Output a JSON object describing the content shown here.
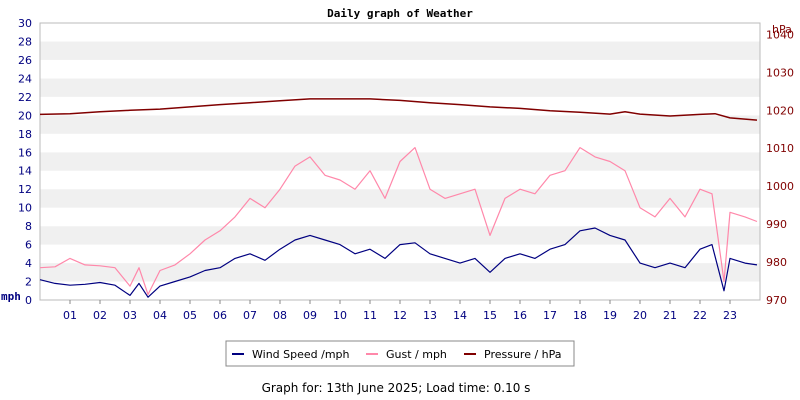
{
  "chart_data": {
    "type": "line",
    "title": "Daily graph of Weather",
    "footer": "Graph for: 13th June 2025; Load time: 0.10 s",
    "x_range": [
      0,
      24
    ],
    "x_tick_labels": [
      "01",
      "02",
      "03",
      "04",
      "05",
      "06",
      "07",
      "08",
      "09",
      "10",
      "11",
      "12",
      "13",
      "14",
      "15",
      "16",
      "17",
      "18",
      "19",
      "20",
      "21",
      "22",
      "23"
    ],
    "left_axis": {
      "unit_label": "mph",
      "range": [
        0,
        30
      ],
      "ticks": [
        0,
        2,
        4,
        6,
        8,
        10,
        12,
        14,
        16,
        18,
        20,
        22,
        24,
        26,
        28,
        30
      ],
      "tick_labels": [
        "0",
        "2",
        "4",
        "6",
        "8",
        "10",
        "12",
        "14",
        "16",
        "18",
        "20",
        "22",
        "24",
        "26",
        "28",
        "30"
      ]
    },
    "right_axis": {
      "unit_label": "hPa",
      "range": [
        970,
        1043
      ],
      "ticks": [
        970,
        980,
        990,
        1000,
        1010,
        1020,
        1030,
        1040
      ],
      "tick_labels": [
        "970",
        "980",
        "990",
        "1000",
        "1010",
        "1020",
        "1030",
        "1040"
      ]
    },
    "legend": [
      {
        "label": "Wind Speed /mph",
        "color": "#000080"
      },
      {
        "label": "Gust / mph",
        "color": "#ff88aa"
      },
      {
        "label": "Pressure / hPa",
        "color": "#800000"
      }
    ],
    "series": [
      {
        "name": "Wind Speed /mph",
        "axis": "left",
        "color": "#000080",
        "x": [
          0,
          0.5,
          1,
          1.5,
          2,
          2.5,
          3,
          3.3,
          3.6,
          4,
          4.5,
          5,
          5.5,
          6,
          6.5,
          7,
          7.5,
          8,
          8.5,
          9,
          9.5,
          10,
          10.5,
          11,
          11.5,
          12,
          12.5,
          13,
          13.5,
          14,
          14.5,
          15,
          15.5,
          16,
          16.5,
          17,
          17.5,
          18,
          18.5,
          19,
          19.5,
          20,
          20.5,
          21,
          21.5,
          22,
          22.4,
          22.8,
          23,
          23.5,
          23.9
        ],
        "values": [
          2.2,
          1.8,
          1.6,
          1.7,
          1.9,
          1.6,
          0.5,
          1.8,
          0.3,
          1.5,
          2.0,
          2.5,
          3.2,
          3.5,
          4.5,
          5.0,
          4.3,
          5.5,
          6.5,
          7.0,
          6.5,
          6.0,
          5.0,
          5.5,
          4.5,
          6.0,
          6.2,
          5.0,
          4.5,
          4.0,
          4.5,
          3.0,
          4.5,
          5.0,
          4.5,
          5.5,
          6.0,
          7.5,
          7.8,
          7.0,
          6.5,
          4.0,
          3.5,
          4.0,
          3.5,
          5.5,
          6.0,
          1.0,
          4.5,
          4.0,
          3.8
        ]
      },
      {
        "name": "Gust / mph",
        "axis": "left",
        "color": "#ff88aa",
        "x": [
          0,
          0.5,
          1,
          1.5,
          2,
          2.5,
          3,
          3.3,
          3.6,
          4,
          4.5,
          5,
          5.5,
          6,
          6.5,
          7,
          7.5,
          8,
          8.5,
          9,
          9.5,
          10,
          10.5,
          11,
          11.5,
          12,
          12.5,
          13,
          13.5,
          14,
          14.5,
          15,
          15.5,
          16,
          16.5,
          17,
          17.5,
          18,
          18.5,
          19,
          19.5,
          20,
          20.5,
          21,
          21.5,
          22,
          22.4,
          22.8,
          23,
          23.5,
          23.9
        ],
        "values": [
          3.5,
          3.6,
          4.5,
          3.8,
          3.7,
          3.5,
          1.5,
          3.5,
          0.6,
          3.2,
          3.8,
          5.0,
          6.5,
          7.5,
          9.0,
          11.0,
          10.0,
          12.0,
          14.5,
          15.5,
          13.5,
          13.0,
          12.0,
          14.0,
          11.0,
          15.0,
          16.5,
          12.0,
          11.0,
          11.5,
          12.0,
          7.0,
          11.0,
          12.0,
          11.5,
          13.5,
          14.0,
          16.5,
          15.5,
          15.0,
          14.0,
          10.0,
          9.0,
          11.0,
          9.0,
          12.0,
          11.5,
          2.0,
          9.5,
          9.0,
          8.5
        ]
      },
      {
        "name": "Pressure / hPa",
        "axis": "right",
        "color": "#800000",
        "x": [
          0,
          1,
          2,
          3,
          4,
          5,
          6,
          7,
          8,
          9,
          10,
          11,
          12,
          13,
          14,
          15,
          16,
          17,
          18,
          19,
          19.5,
          20,
          21,
          22,
          22.5,
          23,
          23.9
        ],
        "values": [
          1018.9,
          1019.1,
          1019.6,
          1020.0,
          1020.3,
          1020.9,
          1021.5,
          1022.0,
          1022.5,
          1023.0,
          1023.0,
          1023.0,
          1022.6,
          1022.0,
          1021.5,
          1020.9,
          1020.5,
          1019.9,
          1019.5,
          1019.0,
          1019.6,
          1019.0,
          1018.5,
          1018.9,
          1019.1,
          1018.0,
          1017.4
        ]
      }
    ]
  }
}
